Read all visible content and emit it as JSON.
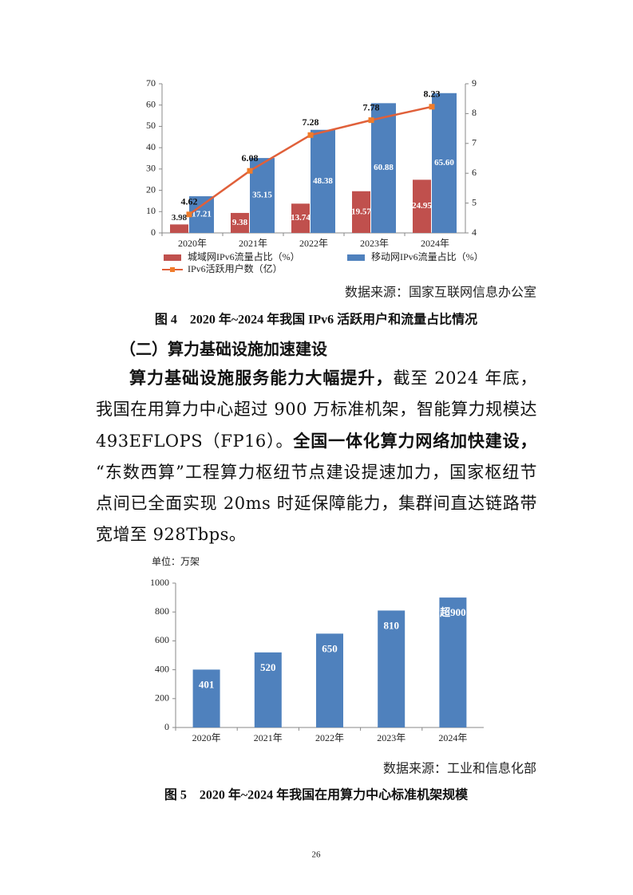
{
  "chart_data": [
    {
      "type": "combo",
      "categories": [
        "2020年",
        "2021年",
        "2022年",
        "2023年",
        "2024年"
      ],
      "series": [
        {
          "name": "城域网IPv6流量占比（%）",
          "color": "#c0504d",
          "type": "bar",
          "values": [
            3.98,
            9.38,
            13.74,
            19.57,
            24.95
          ]
        },
        {
          "name": "移动网IPv6流量占比（%）",
          "color": "#4f81bd",
          "type": "bar",
          "values": [
            17.21,
            35.15,
            48.38,
            60.88,
            65.6
          ],
          "value_labels": [
            "17.21",
            "35.15",
            "48.38",
            "60.88",
            "65.60"
          ]
        },
        {
          "name": "IPv6活跃用户数（亿）",
          "color": "#e0603a",
          "type": "line",
          "axis": "y2",
          "values": [
            4.62,
            6.08,
            7.28,
            7.78,
            8.23
          ]
        }
      ],
      "ylim": [
        0,
        70
      ],
      "yticks": [
        0,
        10,
        20,
        30,
        40,
        50,
        60,
        70
      ],
      "y2lim": [
        4,
        9
      ],
      "y2ticks": [
        4,
        5,
        6,
        7,
        8,
        9
      ],
      "legend": "bottom"
    },
    {
      "type": "bar",
      "unit_label": "单位：万架",
      "categories": [
        "2020年",
        "2021年",
        "2022年",
        "2023年",
        "2024年"
      ],
      "values": [
        401,
        520,
        650,
        810,
        900
      ],
      "value_labels": [
        "401",
        "520",
        "650",
        "810",
        "超900"
      ],
      "color": "#4f81bd",
      "ylim": [
        0,
        1000
      ],
      "yticks": [
        0,
        200,
        400,
        600,
        800,
        1000
      ]
    }
  ],
  "figure_4": {
    "source": "数据来源：国家互联网信息办公室",
    "caption": "图 4　2020 年~2024 年我国 IPv6 活跃用户和流量占比情况"
  },
  "section_heading": "（二）算力基础设施加速建设",
  "paragraph": [
    {
      "text": "算力基础设施服务能力大幅提升，",
      "bold": true
    },
    {
      "text": "截至 2024 年底，我国在用算力中心超过 900 万标准机架，智能算力规模达 493EFLOPS（FP16）。"
    },
    {
      "text": "全国一体化算力网络加快建设，",
      "bold": true
    },
    {
      "text": "“东数西算”工程算力枢纽节点建设提速加力，国家枢纽节点间已全面实现 20ms 时延保障能力，集群间直达链路带宽增至 928Tbps。"
    }
  ],
  "figure_5": {
    "source": "数据来源：工业和信息化部",
    "caption": "图 5　2020 年~2024 年我国在用算力中心标准机架规模"
  },
  "page_number": "26"
}
